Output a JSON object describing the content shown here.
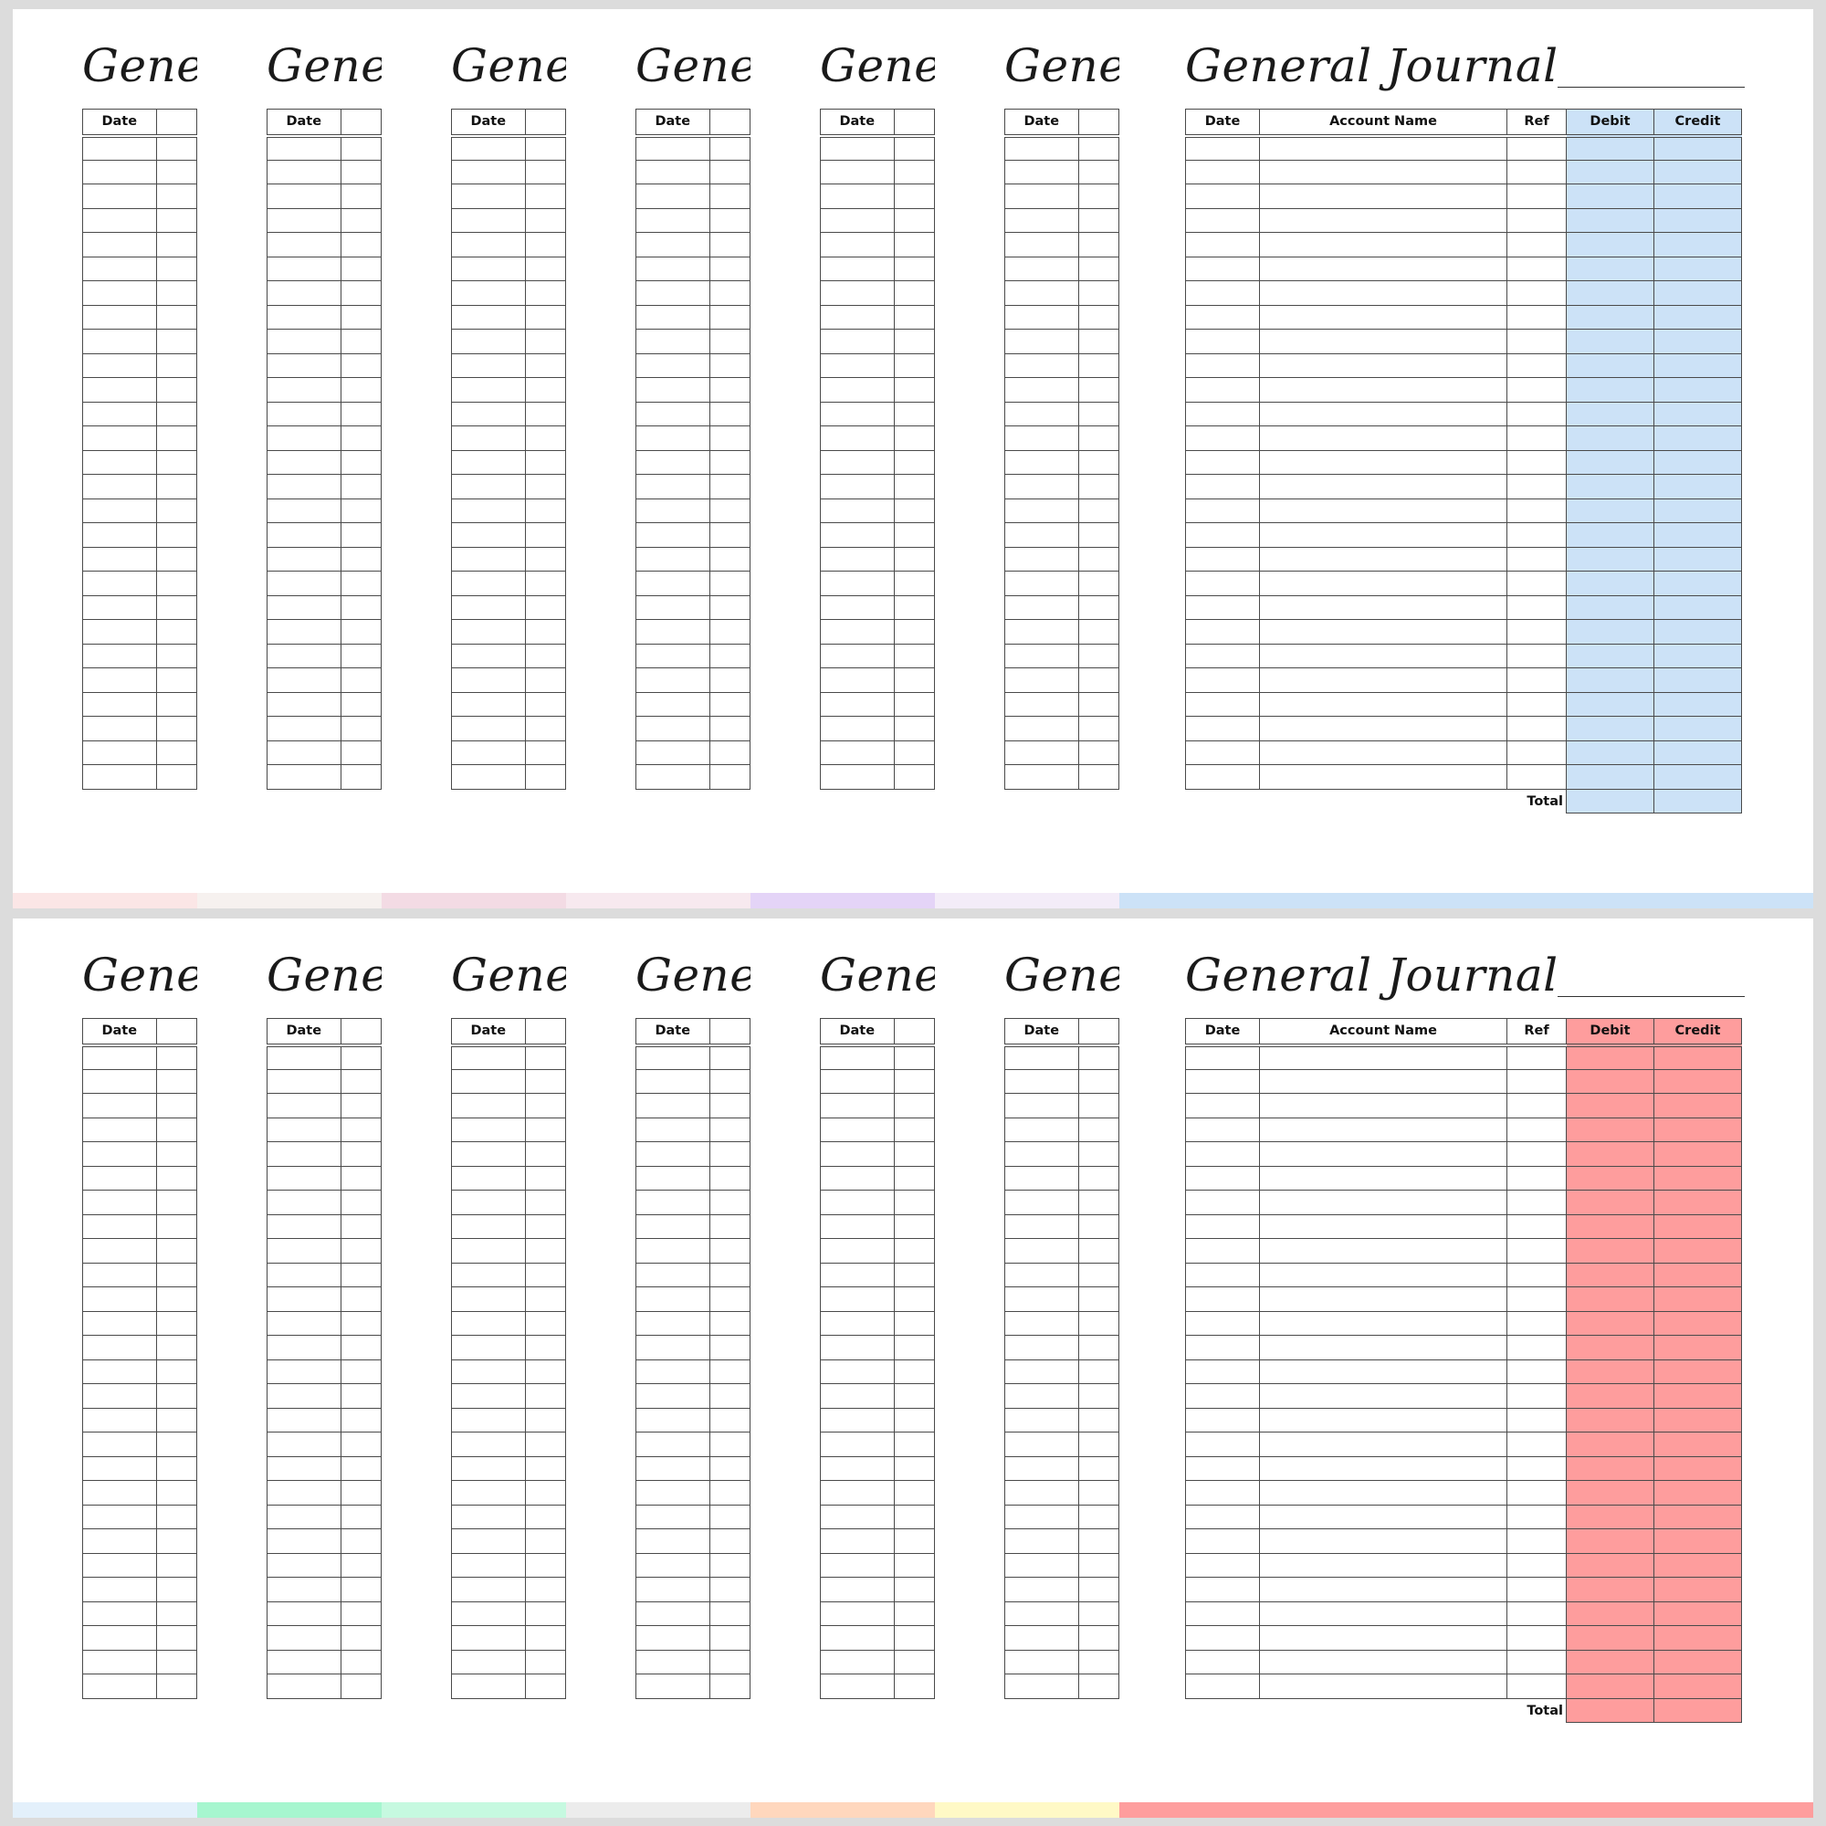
{
  "pages": [
    {
      "title": "General Journal",
      "truncated_title": "Genera",
      "columns": {
        "date": "Date",
        "account": "Account Name",
        "ref": "Ref",
        "debit": "Debit",
        "credit": "Credit"
      },
      "total_label": "Total",
      "accent": "#cce2f7",
      "preview_strip": [
        "#fbe6e6",
        "#f6f1ef",
        "#f3dbe4",
        "#f7e9ef",
        "#e4d4f7",
        "#f3ecf8",
        "#cce2f7"
      ]
    },
    {
      "title": "General Journal",
      "truncated_title": "Genera",
      "columns": {
        "date": "Date",
        "account": "Account Name",
        "ref": "Ref",
        "debit": "Debit",
        "credit": "Credit"
      },
      "total_label": "Total",
      "accent": "#fe9d9d",
      "preview_strip": [
        "#e3f0fb",
        "#a6f6cf",
        "#c6f9e0",
        "#ececec",
        "#ffd7bd",
        "#fff9c6",
        "#fe9d9d"
      ]
    }
  ]
}
